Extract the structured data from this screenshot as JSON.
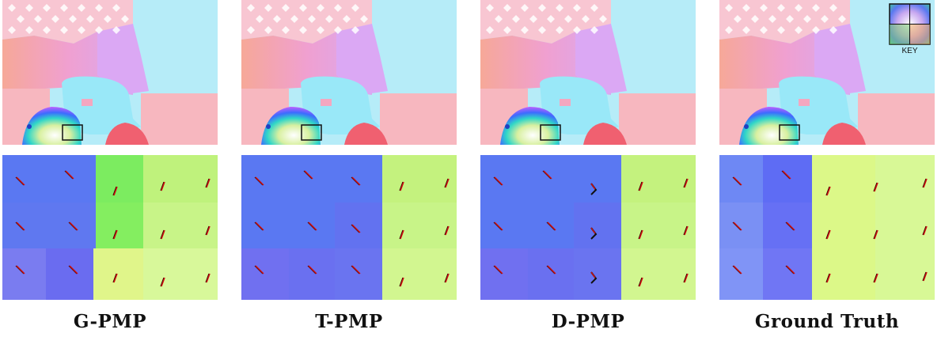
{
  "figure": {
    "panels": [
      {
        "caption": "G-PMP"
      },
      {
        "caption": "T-PMP"
      },
      {
        "caption": "D-PMP"
      },
      {
        "caption": "Ground Truth"
      }
    ],
    "key_label": "KEY"
  }
}
